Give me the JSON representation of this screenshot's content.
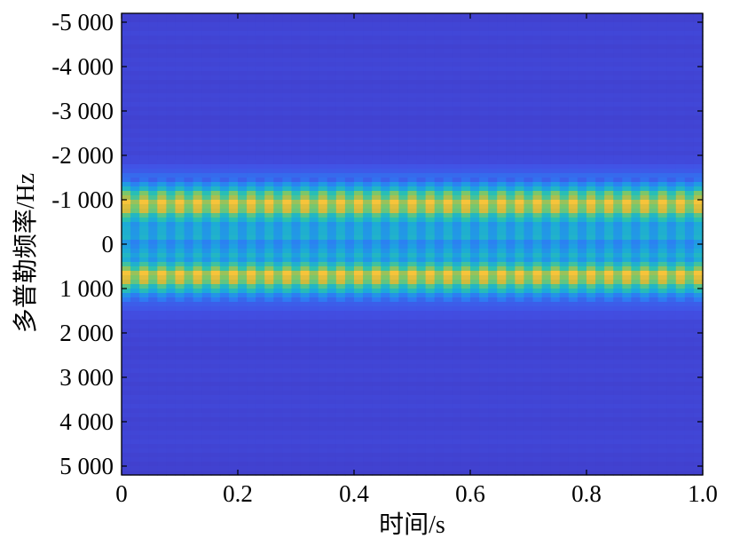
{
  "chart_data": {
    "type": "heatmap",
    "title": "",
    "xlabel": "时间/s",
    "ylabel": "多普勒频率/Hz",
    "xlim": [
      0,
      1.0
    ],
    "ylim": [
      -5200,
      5200
    ],
    "y_axis_reversed": true,
    "x_ticks": [
      0,
      0.2,
      0.4,
      0.6,
      0.8,
      1.0
    ],
    "x_tick_labels": [
      "0",
      "0.2",
      "0.4",
      "0.6",
      "0.8",
      "1.0"
    ],
    "y_ticks": [
      -5000,
      -4000,
      -3000,
      -2000,
      -1000,
      0,
      1000,
      2000,
      3000,
      4000,
      5000
    ],
    "y_tick_labels": [
      "-5 000",
      "-4 000",
      "-3 000",
      "-2 000",
      "-1 000",
      "0",
      "1 000",
      "2 000",
      "3 000",
      "4 000",
      "5 000"
    ],
    "colormap": [
      "#3e26a8",
      "#4250e5",
      "#2c7ff3",
      "#1ba8dc",
      "#29c0b2",
      "#7bc76a",
      "#d0ba3d",
      "#fcc53a",
      "#f9e21f"
    ],
    "time_columns": 65,
    "frequency_profile_hz": [
      -5200,
      -4800,
      -4400,
      -4000,
      -3600,
      -3200,
      -2800,
      -2400,
      -2000,
      -1800,
      -1600,
      -1400,
      -1300,
      -1200,
      -1100,
      -1000,
      -900,
      -800,
      -700,
      -600,
      -500,
      -400,
      -300,
      -200,
      -100,
      0,
      100,
      200,
      300,
      400,
      500,
      600,
      700,
      800,
      900,
      1000,
      1100,
      1200,
      1300,
      1400,
      1600,
      1800,
      2000,
      2400,
      2800,
      3200,
      3600,
      4000,
      4400,
      4800,
      5200
    ],
    "frequency_profile_level": [
      0.08,
      0.1,
      0.09,
      0.1,
      0.09,
      0.1,
      0.09,
      0.1,
      0.1,
      0.12,
      0.18,
      0.25,
      0.42,
      0.55,
      0.7,
      0.82,
      0.9,
      0.82,
      0.7,
      0.55,
      0.45,
      0.4,
      0.42,
      0.48,
      0.38,
      0.33,
      0.38,
      0.48,
      0.42,
      0.45,
      0.62,
      0.8,
      0.92,
      0.82,
      0.68,
      0.55,
      0.4,
      0.28,
      0.2,
      0.15,
      0.12,
      0.1,
      0.1,
      0.09,
      0.1,
      0.09,
      0.1,
      0.09,
      0.1,
      0.09,
      0.08
    ]
  }
}
